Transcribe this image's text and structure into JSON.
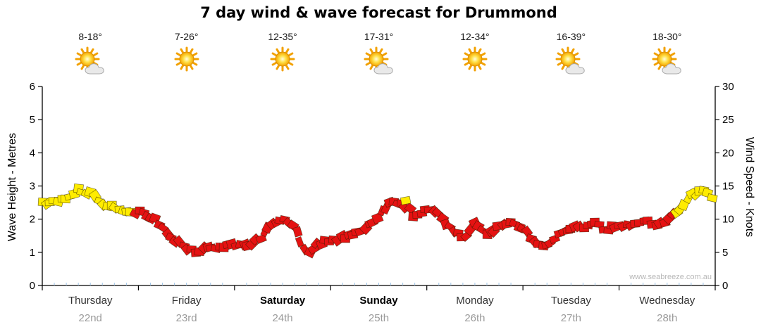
{
  "title": "7 day wind & wave forecast for Drummond",
  "watermark": "www.seabreeze.com.au",
  "axes": {
    "left_label": "Wave Height - Metres",
    "right_label": "Wind Speed - Knots",
    "left_ticks": [
      0,
      1,
      2,
      3,
      4,
      5,
      6
    ],
    "right_ticks": [
      0,
      5,
      10,
      15,
      20,
      25,
      30
    ]
  },
  "days": [
    {
      "name": "Thursday",
      "date": "22nd",
      "temp": "8-18°",
      "icon": "sun-cloud",
      "bold": false
    },
    {
      "name": "Friday",
      "date": "23rd",
      "temp": "7-26°",
      "icon": "sun",
      "bold": false
    },
    {
      "name": "Saturday",
      "date": "24th",
      "temp": "12-35°",
      "icon": "sun",
      "bold": true
    },
    {
      "name": "Sunday",
      "date": "25th",
      "temp": "17-31°",
      "icon": "sun-cloud",
      "bold": true
    },
    {
      "name": "Monday",
      "date": "26th",
      "temp": "12-34°",
      "icon": "sun",
      "bold": false
    },
    {
      "name": "Tuesday",
      "date": "27th",
      "temp": "16-39°",
      "icon": "sun-cloud",
      "bold": false
    },
    {
      "name": "Wednesday",
      "date": "28th",
      "temp": "18-30°",
      "icon": "sun-cloud",
      "bold": false
    }
  ],
  "chart_data": {
    "type": "line",
    "title": "7 day wind & wave forecast for Drummond",
    "x_unit": "days (0 = Thursday 22nd 00:00)",
    "categories": [
      "Thursday 22nd",
      "Friday 23rd",
      "Saturday 24th",
      "Sunday 25th",
      "Monday 26th",
      "Tuesday 27th",
      "Wednesday 28th"
    ],
    "ylabel_left": "Wave Height - Metres",
    "ylabel_right": "Wind Speed - Knots",
    "ylim_left": [
      0,
      6
    ],
    "ylim_right": [
      0,
      30
    ],
    "grid": false,
    "legend": "none",
    "marker_style": "tilted flag rectangles along the line, colour-coded",
    "color_map": {
      "y": "#ffec00",
      "r": "#e51212"
    },
    "series": [
      {
        "name": "wind-speed-knots",
        "points_format": [
          "t_days",
          "knots",
          "color"
        ],
        "points": [
          [
            0.0,
            12.3,
            "y"
          ],
          [
            0.125,
            13.0,
            "y"
          ],
          [
            0.25,
            12.8,
            "y"
          ],
          [
            0.375,
            14.3,
            "y"
          ],
          [
            0.5,
            13.8,
            "y"
          ],
          [
            0.625,
            12.3,
            "y"
          ],
          [
            0.75,
            11.5,
            "y"
          ],
          [
            0.875,
            11.3,
            "y"
          ],
          [
            1.0,
            11.0,
            "r"
          ],
          [
            1.125,
            10.5,
            "r"
          ],
          [
            1.25,
            8.8,
            "r"
          ],
          [
            1.375,
            7.0,
            "r"
          ],
          [
            1.5,
            5.5,
            "r"
          ],
          [
            1.625,
            4.8,
            "r"
          ],
          [
            1.75,
            6.0,
            "r"
          ],
          [
            1.875,
            5.5,
            "r"
          ],
          [
            2.0,
            6.3,
            "r"
          ],
          [
            2.125,
            6.0,
            "r"
          ],
          [
            2.25,
            6.8,
            "r"
          ],
          [
            2.375,
            9.0,
            "r"
          ],
          [
            2.5,
            9.8,
            "r"
          ],
          [
            2.625,
            8.8,
            "r"
          ],
          [
            2.75,
            4.8,
            "r"
          ],
          [
            2.875,
            6.5,
            "r"
          ],
          [
            3.0,
            6.8,
            "r"
          ],
          [
            3.125,
            7.3,
            "r"
          ],
          [
            3.25,
            7.5,
            "r"
          ],
          [
            3.375,
            8.8,
            "r"
          ],
          [
            3.5,
            10.5,
            "r"
          ],
          [
            3.625,
            12.5,
            "r"
          ],
          [
            3.75,
            12.3,
            "r"
          ],
          [
            3.875,
            10.5,
            "r"
          ],
          [
            4.0,
            11.8,
            "r"
          ],
          [
            4.125,
            11.0,
            "r"
          ],
          [
            4.25,
            8.5,
            "r"
          ],
          [
            4.375,
            7.0,
            "r"
          ],
          [
            4.5,
            9.3,
            "r"
          ],
          [
            4.625,
            7.8,
            "r"
          ],
          [
            4.75,
            8.8,
            "r"
          ],
          [
            4.875,
            9.5,
            "r"
          ],
          [
            5.0,
            8.5,
            "r"
          ],
          [
            5.125,
            6.8,
            "r"
          ],
          [
            5.25,
            6.0,
            "r"
          ],
          [
            5.375,
            7.5,
            "r"
          ],
          [
            5.5,
            8.3,
            "r"
          ],
          [
            5.625,
            9.0,
            "r"
          ],
          [
            5.75,
            9.3,
            "r"
          ],
          [
            5.875,
            8.5,
            "r"
          ],
          [
            6.0,
            9.0,
            "r"
          ],
          [
            6.125,
            9.3,
            "r"
          ],
          [
            6.25,
            9.5,
            "r"
          ],
          [
            6.375,
            9.3,
            "r"
          ],
          [
            6.5,
            9.8,
            "r"
          ],
          [
            6.625,
            11.5,
            "y"
          ],
          [
            6.75,
            13.5,
            "y"
          ],
          [
            6.875,
            14.5,
            "y"
          ],
          [
            7.0,
            13.0,
            "y"
          ]
        ],
        "outliers": [
          [
            3.78,
            12.8,
            "y"
          ]
        ]
      }
    ]
  }
}
